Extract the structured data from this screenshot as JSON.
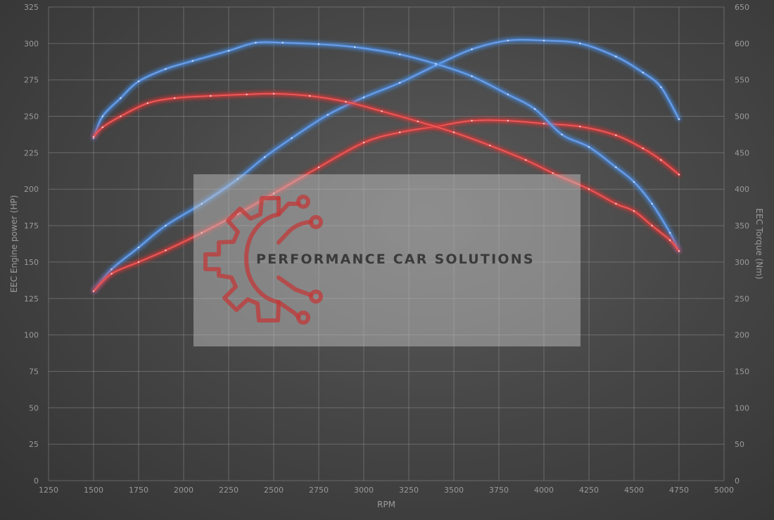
{
  "chart_data": {
    "type": "line",
    "xlabel": "RPM",
    "ylabel_left": "EEC Engine power (HP)",
    "ylabel_right": "EEC Torque (Nm)",
    "xlim": [
      1250,
      5000
    ],
    "x_ticks": [
      1250,
      1500,
      1750,
      2000,
      2250,
      2500,
      2750,
      3000,
      3250,
      3500,
      3750,
      4000,
      4250,
      4500,
      4750,
      5000
    ],
    "ylim_left": [
      0,
      325
    ],
    "y_ticks_left": [
      0,
      25,
      50,
      75,
      100,
      125,
      150,
      175,
      200,
      225,
      250,
      275,
      300,
      325
    ],
    "ylim_right": [
      0,
      650
    ],
    "y_ticks_right": [
      0,
      50,
      100,
      150,
      200,
      250,
      300,
      350,
      400,
      450,
      500,
      550,
      600,
      650
    ],
    "grid": true,
    "series": [
      {
        "axis": "left",
        "color": "#4a8fe8",
        "x": [
          1500,
          1600,
          1750,
          1900,
          2100,
          2300,
          2450,
          2600,
          2800,
          3000,
          3200,
          3400,
          3600,
          3800,
          4000,
          4200,
          4400,
          4550,
          4650,
          4750
        ],
        "values": [
          130,
          145,
          160,
          175,
          190,
          207,
          222,
          235,
          251,
          263,
          273,
          285,
          296,
          302,
          302,
          300,
          291,
          280,
          270,
          248
        ]
      },
      {
        "axis": "left",
        "color": "#e03a3a",
        "x": [
          1500,
          1600,
          1750,
          1900,
          2100,
          2300,
          2500,
          2750,
          3000,
          3200,
          3400,
          3600,
          3800,
          4000,
          4200,
          4400,
          4550,
          4650,
          4750
        ],
        "values": [
          130,
          142,
          150,
          158,
          170,
          183,
          197,
          215,
          232,
          239,
          243,
          247,
          247,
          245,
          243,
          237,
          228,
          220,
          210
        ]
      },
      {
        "axis": "right",
        "color": "#4a8fe8",
        "x": [
          1500,
          1550,
          1650,
          1750,
          1900,
          2050,
          2250,
          2400,
          2550,
          2750,
          2950,
          3200,
          3400,
          3600,
          3800,
          3950,
          4100,
          4250,
          4400,
          4500,
          4600,
          4700,
          4750
        ],
        "values": [
          470,
          500,
          525,
          548,
          565,
          576,
          590,
          601,
          601,
          599,
          595,
          585,
          572,
          555,
          530,
          510,
          475,
          458,
          430,
          410,
          380,
          340,
          315
        ]
      },
      {
        "axis": "right",
        "color": "#e03a3a",
        "x": [
          1500,
          1550,
          1650,
          1800,
          1950,
          2150,
          2350,
          2500,
          2700,
          2900,
          3100,
          3300,
          3500,
          3700,
          3900,
          4050,
          4250,
          4400,
          4500,
          4600,
          4700,
          4750
        ],
        "values": [
          472,
          485,
          500,
          518,
          525,
          528,
          530,
          531,
          528,
          520,
          507,
          493,
          478,
          460,
          440,
          422,
          400,
          380,
          370,
          350,
          330,
          315
        ]
      }
    ]
  },
  "watermark": {
    "brand_text": "PERFORMANCE CAR SOLUTIONS",
    "logo_color": "#c23a3a",
    "icon_name": "gear-circuit-logo"
  }
}
